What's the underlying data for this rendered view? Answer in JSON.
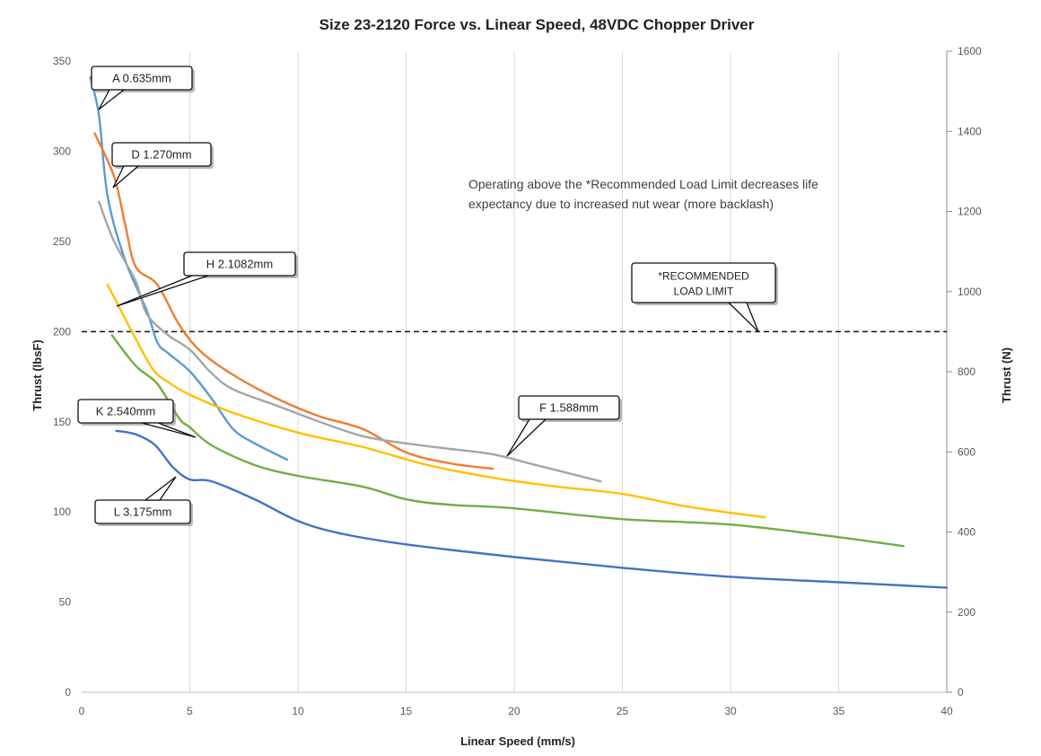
{
  "chart_data": {
    "type": "line",
    "title": "Size 23-2120 Force vs. Linear Speed, 48VDC Chopper Driver",
    "xlabel": "Linear Speed (mm/s)",
    "ylabel": "Thrust (lbsF)",
    "y2label": "Thrust (N)",
    "xlim": [
      0,
      40
    ],
    "ylim": [
      0,
      360
    ],
    "y2lim": [
      0,
      1600
    ],
    "xticks": [
      0,
      5,
      10,
      15,
      20,
      25,
      30,
      35,
      40
    ],
    "yticks": [
      0,
      50,
      100,
      150,
      200,
      250,
      300,
      350
    ],
    "y2ticks": [
      0,
      200,
      400,
      600,
      800,
      1000,
      1200,
      1400,
      1600
    ],
    "grid": "vertical",
    "recommended_limit": {
      "value": 200,
      "label_line1": "*RECOMMENDED",
      "label_line2": "LOAD LIMIT"
    },
    "note_line1": "Operating above the *Recommended Load Limit decreases life",
    "note_line2": "expectancy due to increased nut wear (more backlash)",
    "series": [
      {
        "name": "A 0.635mm",
        "color": "#5B9BD5",
        "points": [
          [
            0.4,
            341
          ],
          [
            0.8,
            320
          ],
          [
            1.2,
            275
          ],
          [
            2,
            240
          ],
          [
            3,
            212
          ],
          [
            3.5,
            194
          ],
          [
            4,
            188
          ],
          [
            5,
            178
          ],
          [
            6,
            163
          ],
          [
            7,
            146
          ],
          [
            8,
            138
          ],
          [
            9.5,
            129
          ]
        ]
      },
      {
        "name": "D 1.270mm",
        "color": "#ED7D31",
        "points": [
          [
            0.6,
            310
          ],
          [
            1.5,
            286
          ],
          [
            2,
            260
          ],
          [
            2.5,
            236
          ],
          [
            3.5,
            226
          ],
          [
            4.5,
            204
          ],
          [
            5.5,
            189
          ],
          [
            7,
            176
          ],
          [
            9,
            163
          ],
          [
            11,
            153
          ],
          [
            13,
            146
          ],
          [
            15,
            133
          ],
          [
            17,
            127
          ],
          [
            19,
            124
          ]
        ]
      },
      {
        "name": "F 1.588mm",
        "color": "#A5A5A5",
        "points": [
          [
            0.8,
            272
          ],
          [
            1.5,
            250
          ],
          [
            2.5,
            228
          ],
          [
            3,
            210
          ],
          [
            4,
            198
          ],
          [
            5,
            190
          ],
          [
            6,
            177
          ],
          [
            7,
            168
          ],
          [
            9,
            159
          ],
          [
            11,
            150
          ],
          [
            13,
            142
          ],
          [
            15,
            138
          ],
          [
            17,
            135
          ],
          [
            19,
            132
          ],
          [
            21,
            126
          ],
          [
            24,
            117
          ]
        ]
      },
      {
        "name": "H 2.1082mm",
        "color": "#FFC000",
        "points": [
          [
            1.2,
            226
          ],
          [
            2.5,
            196
          ],
          [
            3.3,
            179
          ],
          [
            4,
            172
          ],
          [
            5,
            165
          ],
          [
            7,
            155
          ],
          [
            10,
            144
          ],
          [
            13,
            136
          ],
          [
            16,
            126
          ],
          [
            19,
            119
          ],
          [
            22,
            114
          ],
          [
            25,
            110
          ],
          [
            28,
            103
          ],
          [
            31.6,
            97
          ]
        ]
      },
      {
        "name": "K 2.540mm",
        "color": "#70AD47",
        "points": [
          [
            1.4,
            198
          ],
          [
            2.5,
            181
          ],
          [
            3.5,
            171
          ],
          [
            4.5,
            152
          ],
          [
            5,
            147
          ],
          [
            6,
            137
          ],
          [
            8,
            126
          ],
          [
            10,
            120
          ],
          [
            13,
            114
          ],
          [
            15,
            107
          ],
          [
            17,
            104
          ],
          [
            20,
            102
          ],
          [
            25,
            96
          ],
          [
            30,
            93
          ],
          [
            35,
            86
          ],
          [
            38,
            81
          ]
        ]
      },
      {
        "name": "L 3.175mm",
        "color": "#4472C4",
        "points": [
          [
            1.6,
            145
          ],
          [
            2.5,
            143
          ],
          [
            3.4,
            137
          ],
          [
            4.2,
            125
          ],
          [
            5,
            118
          ],
          [
            6,
            117
          ],
          [
            8,
            107
          ],
          [
            10,
            95
          ],
          [
            12,
            88
          ],
          [
            15,
            82
          ],
          [
            20,
            75
          ],
          [
            25,
            69
          ],
          [
            30,
            64
          ],
          [
            35,
            61
          ],
          [
            40,
            58
          ]
        ]
      }
    ],
    "callouts": [
      {
        "series": "A 0.635mm"
      },
      {
        "series": "D 1.270mm"
      },
      {
        "series": "H 2.1082mm"
      },
      {
        "series": "F 1.588mm"
      },
      {
        "series": "K 2.540mm"
      },
      {
        "series": "L 3.175mm"
      }
    ]
  }
}
